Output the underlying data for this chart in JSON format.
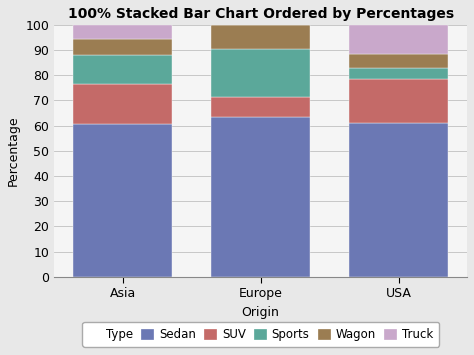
{
  "title": "100% Stacked Bar Chart Ordered by Percentages",
  "xlabel": "Origin",
  "ylabel": "Percentage",
  "categories": [
    "Asia",
    "Europe",
    "USA"
  ],
  "series": {
    "Sedan": [
      60.5,
      63.5,
      61.0
    ],
    "SUV": [
      16.0,
      8.0,
      17.5
    ],
    "Sports": [
      11.5,
      19.0,
      4.5
    ],
    "Wagon": [
      6.5,
      9.5,
      5.5
    ],
    "Truck": [
      5.5,
      0.0,
      11.5
    ]
  },
  "colors": {
    "Sedan": "#6b78b4",
    "SUV": "#c46a68",
    "Sports": "#5ba89a",
    "Wagon": "#9b7d52",
    "Truck": "#c9a8cb"
  },
  "ylim": [
    0,
    100
  ],
  "yticks": [
    0,
    10,
    20,
    30,
    40,
    50,
    60,
    70,
    80,
    90,
    100
  ],
  "bar_width": 0.72,
  "legend_label": "Type",
  "figure_bg_color": "#e8e8e8",
  "plot_bg_color": "#f5f5f5",
  "title_fontsize": 10,
  "axis_label_fontsize": 9,
  "tick_fontsize": 9,
  "legend_fontsize": 8.5
}
